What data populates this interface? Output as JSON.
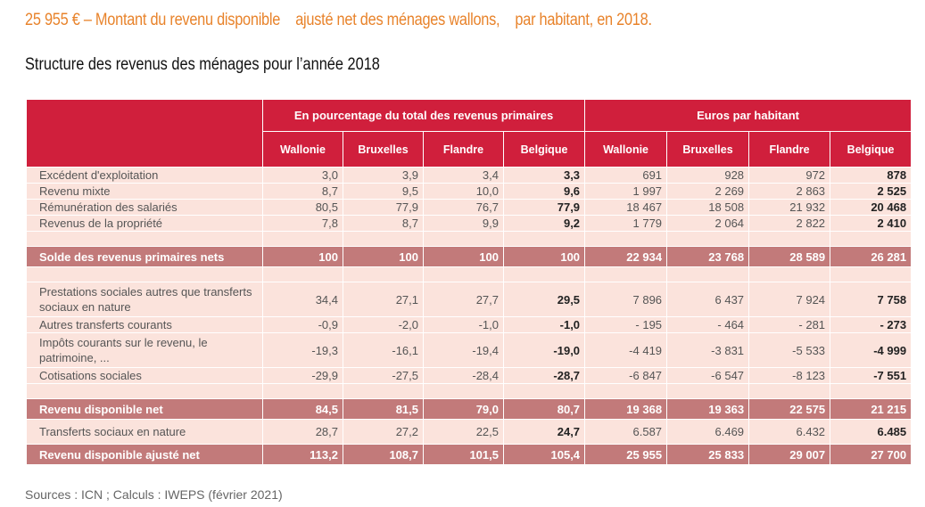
{
  "headline": "25 955 € – Montant du revenu disponible    ajusté net des ménages wallons,    par habitant, en 2018.",
  "subtitle": "Structure des revenus des ménages pour l’année 2018",
  "table": {
    "group_pct": "En pourcentage du total des revenus primaires",
    "group_eur": "Euros par habitant",
    "cols": [
      "Wallonie",
      "Bruxelles",
      "Flandre",
      "Belgique",
      "Wallonie",
      "Bruxelles",
      "Flandre",
      "Belgique"
    ],
    "rows": [
      {
        "label": "Excédent d'exploitation",
        "v": [
          "3,0",
          "3,9",
          "3,4",
          "3,3",
          "691",
          "928",
          "972",
          "878"
        ]
      },
      {
        "label": "Revenu mixte",
        "v": [
          "8,7",
          "9,5",
          "10,0",
          "9,6",
          "1 997",
          "2 269",
          "2 863",
          "2 525"
        ]
      },
      {
        "label": "Rémunération des salariés",
        "v": [
          "80,5",
          "77,9",
          "76,7",
          "77,9",
          "18 467",
          "18 508",
          "21 932",
          "20 468"
        ]
      },
      {
        "label": "Revenus de la propriété",
        "v": [
          "7,8",
          "8,7",
          "9,9",
          "9,2",
          "1 779",
          "2 064",
          "2 822",
          "2 410"
        ]
      },
      {
        "label": "Solde des revenus primaires nets",
        "v": [
          "100",
          "100",
          "100",
          "100",
          "22 934",
          "23 768",
          "28 589",
          "26 281"
        ]
      },
      {
        "label": "Prestations sociales autres que transferts sociaux en nature",
        "v": [
          "34,4",
          "27,1",
          "27,7",
          "29,5",
          "7 896",
          "6 437",
          "7 924",
          "7 758"
        ]
      },
      {
        "label": "Autres transferts courants",
        "v": [
          "-0,9",
          "-2,0",
          "-1,0",
          "-1,0",
          "- 195",
          "- 464",
          "- 281",
          "- 273"
        ]
      },
      {
        "label": "Impôts courants sur le revenu, le patrimoine, ...",
        "v": [
          "-19,3",
          "-16,1",
          "-19,4",
          "-19,0",
          "-4 419",
          "-3 831",
          "-5 533",
          "-4 999"
        ]
      },
      {
        "label": "Cotisations sociales",
        "v": [
          "-29,9",
          "-27,5",
          "-28,4",
          "-28,7",
          "-6 847",
          "-6 547",
          "-8 123",
          "-7 551"
        ]
      },
      {
        "label": "Revenu disponible net",
        "v": [
          "84,5",
          "81,5",
          "79,0",
          "80,7",
          "19 368",
          "19 363",
          "22 575",
          "21 215"
        ]
      },
      {
        "label": "Transferts sociaux en nature",
        "v": [
          "28,7",
          "27,2",
          "22,5",
          "24,7",
          "6.587",
          "6.469",
          "6.432",
          "6.485"
        ]
      },
      {
        "label": "Revenu disponible ajusté net",
        "v": [
          "113,2",
          "108,7",
          "101,5",
          "105,4",
          "25 955",
          "25 833",
          "29 007",
          "27 700"
        ]
      }
    ]
  },
  "source": "Sources : ICN ; Calculs : IWEPS (février 2021)"
}
